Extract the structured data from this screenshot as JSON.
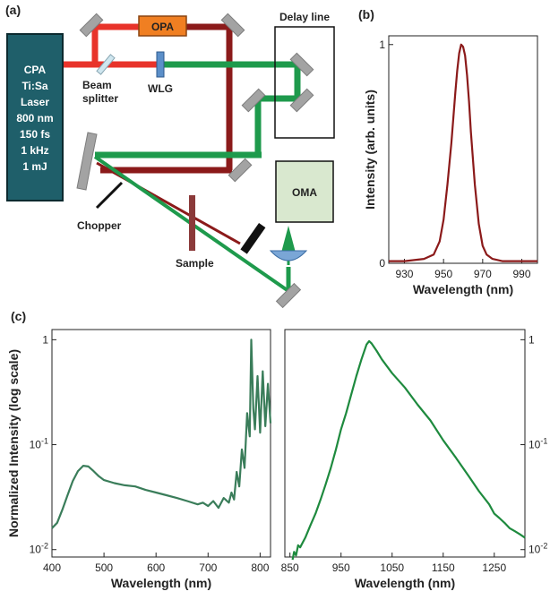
{
  "panels": {
    "a": {
      "label": "(a)"
    },
    "b": {
      "label": "(b)"
    },
    "c": {
      "label": "(c)"
    }
  },
  "setup": {
    "laser_lines": [
      "CPA",
      "Ti:Sa",
      "Laser",
      "800 nm",
      "150 fs",
      "1 kHz",
      "1 mJ"
    ],
    "opa": "OPA",
    "delay_line": "Delay line",
    "beam_splitter_lines": [
      "Beam",
      "splitter"
    ],
    "wlg": "WLG",
    "oma": "OMA",
    "chopper": "Chopper",
    "sample": "Sample",
    "colors": {
      "laser_box": "#1f5f6a",
      "opa_box": "#f07f22",
      "oma_box": "#d9e8cf",
      "pump_red": "#e8332a",
      "dark_red": "#8b1a1a",
      "probe_green": "#1e9a4c",
      "mirror_gray": "#a3a3a3",
      "wlg_blue": "#5b8fc9",
      "sample_brown": "#8b3a3a"
    },
    "icons": [
      "mirror-icon",
      "lens-icon",
      "beam-dump-icon",
      "chopper-blade-icon"
    ]
  },
  "chart_data": [
    {
      "panel": "b",
      "type": "line",
      "xlabel": "Wavelength (nm)",
      "ylabel": "Intensity (arb. units)",
      "xlim": [
        922,
        998
      ],
      "ylim": [
        0,
        1.04
      ],
      "xticks": [
        930,
        950,
        970,
        990
      ],
      "yticks": [
        0,
        1
      ],
      "color": "#8b1a1a",
      "series": [
        {
          "x": [
            922,
            930,
            940,
            945,
            948,
            950,
            952,
            954,
            956,
            957,
            958,
            959,
            960,
            961,
            962,
            963,
            964,
            966,
            968,
            970,
            972,
            975,
            980,
            990,
            998
          ],
          "y": [
            0.01,
            0.01,
            0.02,
            0.04,
            0.1,
            0.2,
            0.36,
            0.55,
            0.78,
            0.88,
            0.96,
            1.0,
            0.99,
            0.95,
            0.86,
            0.74,
            0.6,
            0.36,
            0.18,
            0.08,
            0.04,
            0.02,
            0.01,
            0.01,
            0.01
          ]
        }
      ]
    },
    {
      "panel": "c-left",
      "type": "line",
      "xlabel": "Wavelength (nm)",
      "ylabel": "Normalized Intensity (log scale)",
      "xscale": "linear",
      "yscale": "log",
      "xlim": [
        400,
        820
      ],
      "ylim": [
        0.0085,
        1.25
      ],
      "xticks": [
        400,
        500,
        600,
        700,
        800
      ],
      "yticks": [
        0.01,
        0.1,
        1
      ],
      "yticklabels": [
        "10-2",
        "10-1",
        "1"
      ],
      "color": "#3a7d5a",
      "series": [
        {
          "x": [
            400,
            410,
            420,
            430,
            440,
            450,
            460,
            470,
            480,
            490,
            500,
            520,
            540,
            560,
            580,
            600,
            620,
            640,
            660,
            680,
            690,
            700,
            710,
            720,
            730,
            740,
            745,
            750,
            755,
            760,
            765,
            770,
            775,
            780,
            783,
            787,
            790,
            795,
            800,
            805,
            810,
            815,
            820
          ],
          "y": [
            0.016,
            0.018,
            0.024,
            0.033,
            0.045,
            0.056,
            0.063,
            0.062,
            0.056,
            0.05,
            0.046,
            0.043,
            0.041,
            0.04,
            0.037,
            0.035,
            0.033,
            0.031,
            0.029,
            0.027,
            0.028,
            0.026,
            0.029,
            0.025,
            0.031,
            0.028,
            0.035,
            0.03,
            0.055,
            0.04,
            0.09,
            0.06,
            0.2,
            0.12,
            1.0,
            0.22,
            0.14,
            0.45,
            0.13,
            0.5,
            0.15,
            0.38,
            0.16
          ]
        }
      ]
    },
    {
      "panel": "c-right",
      "type": "line",
      "xlabel": "Wavelength (nm)",
      "yscale": "log",
      "xlim": [
        840,
        1310
      ],
      "ylim": [
        0.0085,
        1.25
      ],
      "xticks": [
        850,
        950,
        1050,
        1150,
        1250
      ],
      "yticks": [
        0.01,
        0.1,
        1
      ],
      "yticklabels": [
        "10-2",
        "10-1",
        "1"
      ],
      "color": "#1e8a3e",
      "series": [
        {
          "x": [
            855,
            858,
            862,
            866,
            870,
            880,
            890,
            900,
            910,
            920,
            930,
            940,
            950,
            960,
            970,
            980,
            990,
            1000,
            1005,
            1010,
            1020,
            1030,
            1050,
            1075,
            1100,
            1125,
            1150,
            1175,
            1200,
            1220,
            1240,
            1250,
            1260,
            1270,
            1280,
            1290,
            1300,
            1310
          ],
          "y": [
            0.008,
            0.0095,
            0.0088,
            0.011,
            0.0105,
            0.013,
            0.017,
            0.022,
            0.03,
            0.042,
            0.06,
            0.09,
            0.14,
            0.2,
            0.3,
            0.45,
            0.65,
            0.9,
            0.97,
            0.92,
            0.78,
            0.65,
            0.48,
            0.35,
            0.24,
            0.17,
            0.11,
            0.075,
            0.05,
            0.036,
            0.027,
            0.022,
            0.02,
            0.018,
            0.016,
            0.015,
            0.014,
            0.013
          ]
        }
      ]
    }
  ]
}
